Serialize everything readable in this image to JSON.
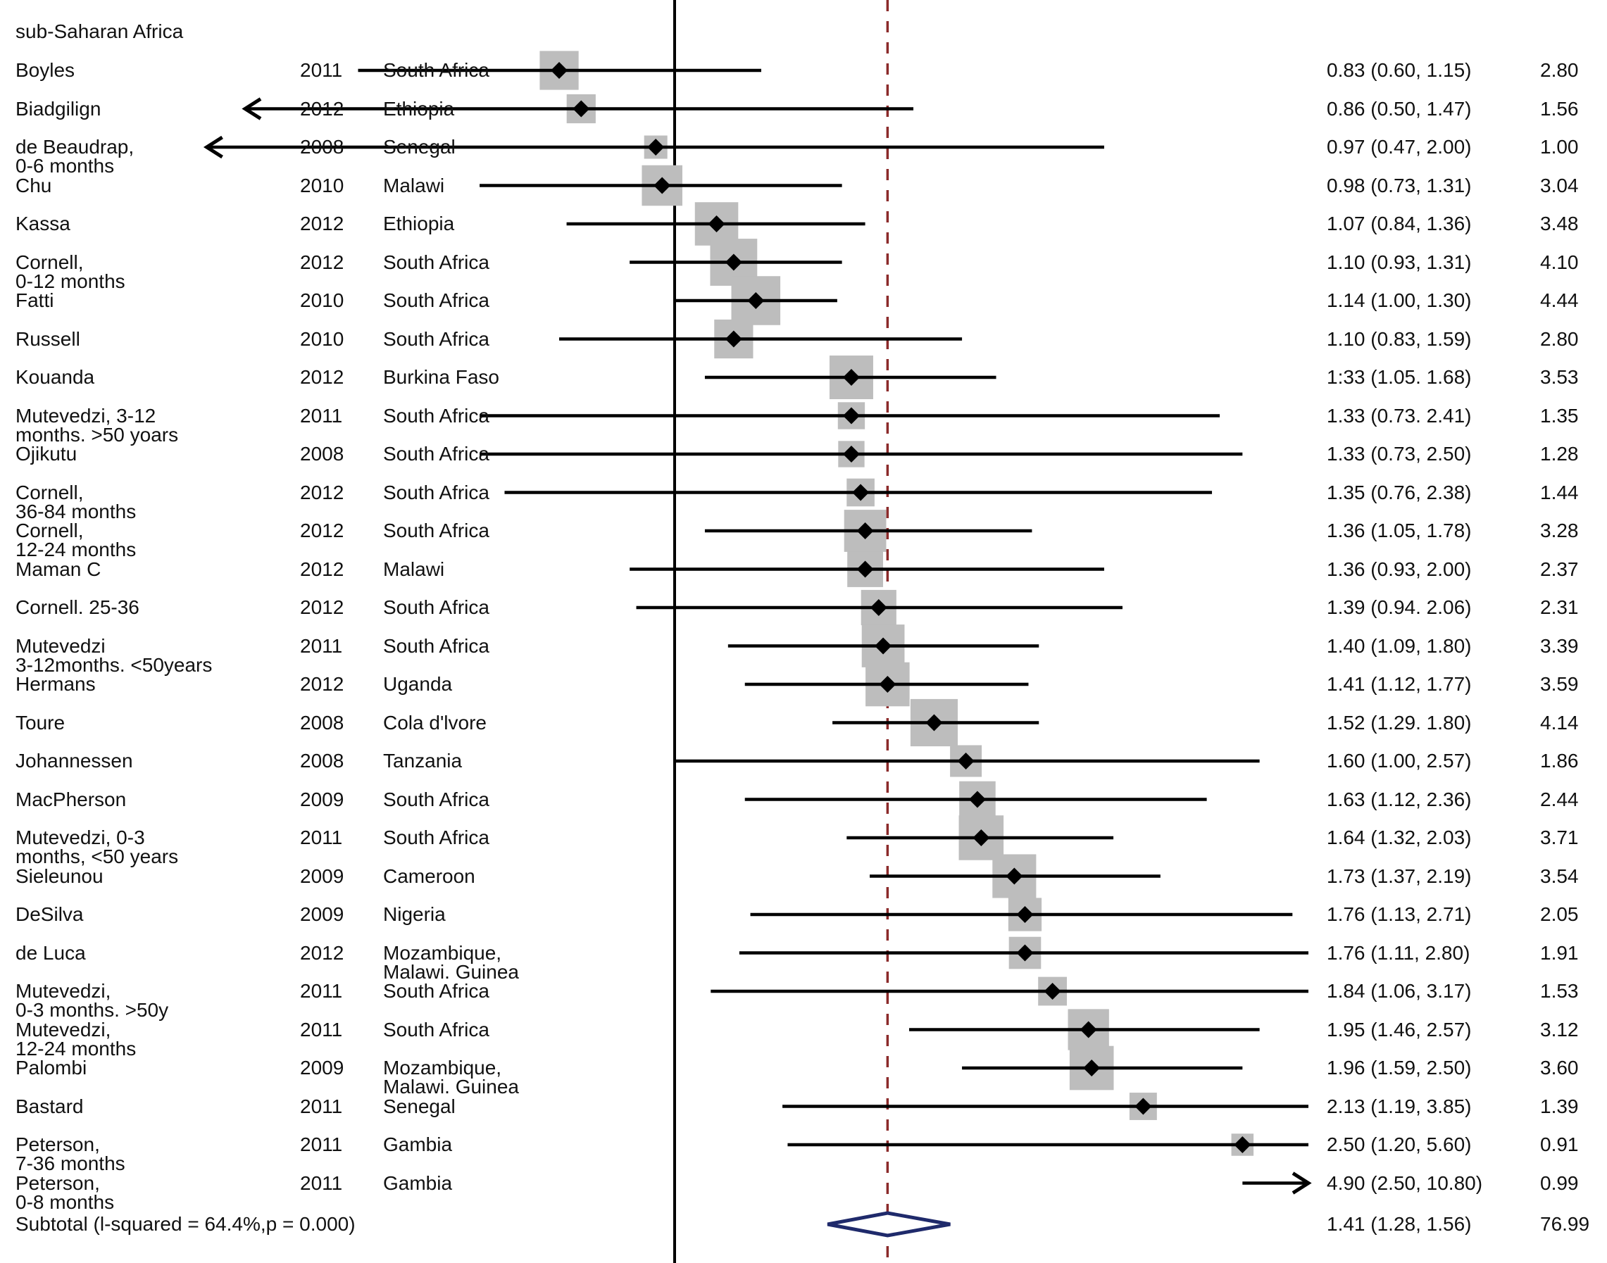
{
  "chart_data": {
    "type": "forest",
    "group_label": "sub-Saharan Africa",
    "x_scale": "log",
    "x_range": [
      0.42,
      12.5
    ],
    "null_line": 1.0,
    "pooled_line": 1.41,
    "studies": [
      {
        "author": [
          "Boyles"
        ],
        "year": "2011",
        "country": [
          "South Africa"
        ],
        "es": 0.83,
        "lo": 0.6,
        "hi": 1.15,
        "es_text": "0.83 (0.60, 1.15)",
        "weight": "2.80",
        "arrow": ""
      },
      {
        "author": [
          "Biadgilign"
        ],
        "year": "2012",
        "country": [
          "Ethiopia"
        ],
        "es": 0.86,
        "lo": 0.5,
        "hi": 1.47,
        "es_text": "0.86 (0.50, 1.47)",
        "weight": "1.56",
        "arrow": "left"
      },
      {
        "author": [
          "de Beaudrap,",
          "0-6 months"
        ],
        "year": "2008",
        "country": [
          "Senegal"
        ],
        "es": 0.97,
        "lo": 0.47,
        "hi": 2.0,
        "es_text": "0.97 (0.47, 2.00)",
        "weight": "1.00",
        "arrow": "left"
      },
      {
        "author": [
          "Chu"
        ],
        "year": "2010",
        "country": [
          "Malawi"
        ],
        "es": 0.98,
        "lo": 0.73,
        "hi": 1.31,
        "es_text": "0.98 (0.73, 1.31)",
        "weight": "3.04",
        "arrow": ""
      },
      {
        "author": [
          "Kassa"
        ],
        "year": "2012",
        "country": [
          "Ethiopia"
        ],
        "es": 1.07,
        "lo": 0.84,
        "hi": 1.36,
        "es_text": "1.07 (0.84, 1.36)",
        "weight": "3.48",
        "arrow": ""
      },
      {
        "author": [
          "Cornell,",
          "0-12 months"
        ],
        "year": "2012",
        "country": [
          "South Africa"
        ],
        "es": 1.1,
        "lo": 0.93,
        "hi": 1.31,
        "es_text": "1.10 (0.93, 1.31)",
        "weight": "4.10",
        "arrow": ""
      },
      {
        "author": [
          "Fatti"
        ],
        "year": "2010",
        "country": [
          "South Africa"
        ],
        "es": 1.14,
        "lo": 1.0,
        "hi": 1.3,
        "es_text": "1.14 (1.00, 1.30)",
        "weight": "4.44",
        "arrow": ""
      },
      {
        "author": [
          "Russell"
        ],
        "year": "2010",
        "country": [
          "South Africa"
        ],
        "es": 1.1,
        "lo": 0.83,
        "hi": 1.59,
        "es_text": "1.10 (0.83, 1.59)",
        "weight": "2.80",
        "arrow": ""
      },
      {
        "author": [
          "Kouanda"
        ],
        "year": "2012",
        "country": [
          "Burkina Faso"
        ],
        "es": 1.33,
        "lo": 1.05,
        "hi": 1.68,
        "es_text": "1:33 (1.05. 1.68)",
        "weight": "3.53",
        "arrow": ""
      },
      {
        "author": [
          "Mutevedzi, 3-12",
          "months. >50 yoars"
        ],
        "year": "2011",
        "country": [
          "South Africa"
        ],
        "es": 1.33,
        "lo": 0.73,
        "hi": 2.41,
        "es_text": "1.33 (0.73. 2.41)",
        "weight": "1.35",
        "arrow": ""
      },
      {
        "author": [
          "Ojikutu"
        ],
        "year": "2008",
        "country": [
          "South Africa"
        ],
        "es": 1.33,
        "lo": 0.73,
        "hi": 2.5,
        "es_text": "1.33 (0.73, 2.50)",
        "weight": "1.28",
        "arrow": ""
      },
      {
        "author": [
          "Cornell,",
          "36-84 months"
        ],
        "year": "2012",
        "country": [
          "South Africa"
        ],
        "es": 1.35,
        "lo": 0.76,
        "hi": 2.38,
        "es_text": "1.35 (0.76, 2.38)",
        "weight": "1.44",
        "arrow": ""
      },
      {
        "author": [
          "Cornell,",
          "12-24 months"
        ],
        "year": "2012",
        "country": [
          "South Africa"
        ],
        "es": 1.36,
        "lo": 1.05,
        "hi": 1.78,
        "es_text": "1.36 (1.05, 1.78)",
        "weight": "3.28",
        "arrow": ""
      },
      {
        "author": [
          "Maman C"
        ],
        "year": "2012",
        "country": [
          "Malawi"
        ],
        "es": 1.36,
        "lo": 0.93,
        "hi": 2.0,
        "es_text": "1.36 (0.93, 2.00)",
        "weight": "2.37",
        "arrow": ""
      },
      {
        "author": [
          "Cornell. 25-36"
        ],
        "year": "2012",
        "country": [
          "South Africa"
        ],
        "es": 1.39,
        "lo": 0.94,
        "hi": 2.06,
        "es_text": "1.39 (0.94. 2.06)",
        "weight": "2.31",
        "arrow": ""
      },
      {
        "author": [
          "Mutevedzi",
          "3-12months. <50years"
        ],
        "year": "2011",
        "country": [
          "South Africa"
        ],
        "es": 1.4,
        "lo": 1.09,
        "hi": 1.8,
        "es_text": "1.40 (1.09, 1.80)",
        "weight": "3.39",
        "arrow": ""
      },
      {
        "author": [
          "Hermans"
        ],
        "year": "2012",
        "country": [
          "Uganda"
        ],
        "es": 1.41,
        "lo": 1.12,
        "hi": 1.77,
        "es_text": "1.41 (1.12, 1.77)",
        "weight": "3.59",
        "arrow": ""
      },
      {
        "author": [
          "Toure"
        ],
        "year": "2008",
        "country": [
          "Cola d'lvore"
        ],
        "es": 1.52,
        "lo": 1.29,
        "hi": 1.8,
        "es_text": "1.52 (1.29. 1.80)",
        "weight": "4.14",
        "arrow": ""
      },
      {
        "author": [
          "Johannessen"
        ],
        "year": "2008",
        "country": [
          "Tanzania"
        ],
        "es": 1.6,
        "lo": 1.0,
        "hi": 2.57,
        "es_text": "1.60 (1.00, 2.57)",
        "weight": "1.86",
        "arrow": ""
      },
      {
        "author": [
          "MacPherson"
        ],
        "year": "2009",
        "country": [
          "South Africa"
        ],
        "es": 1.63,
        "lo": 1.12,
        "hi": 2.36,
        "es_text": "1.63 (1.12, 2.36)",
        "weight": "2.44",
        "arrow": ""
      },
      {
        "author": [
          "Mutevedzi, 0-3",
          "months, <50 years"
        ],
        "year": "2011",
        "country": [
          "South Africa"
        ],
        "es": 1.64,
        "lo": 1.32,
        "hi": 2.03,
        "es_text": "1.64 (1.32, 2.03)",
        "weight": "3.71",
        "arrow": ""
      },
      {
        "author": [
          "Sieleunou"
        ],
        "year": "2009",
        "country": [
          "Cameroon"
        ],
        "es": 1.73,
        "lo": 1.37,
        "hi": 2.19,
        "es_text": "1.73 (1.37, 2.19)",
        "weight": "3.54",
        "arrow": ""
      },
      {
        "author": [
          "DeSilva"
        ],
        "year": "2009",
        "country": [
          "Nigeria"
        ],
        "es": 1.76,
        "lo": 1.13,
        "hi": 2.71,
        "es_text": "1.76 (1.13, 2.71)",
        "weight": "2.05",
        "arrow": ""
      },
      {
        "author": [
          "de Luca"
        ],
        "year": "2012",
        "country": [
          "Mozambique,",
          "Malawi. Guinea"
        ],
        "es": 1.76,
        "lo": 1.11,
        "hi": 2.8,
        "es_text": "1.76 (1.11, 2.80)",
        "weight": "1.91",
        "arrow": ""
      },
      {
        "author": [
          "Mutevedzi,",
          "0-3 months. >50y"
        ],
        "year": "2011",
        "country": [
          "South Africa"
        ],
        "es": 1.84,
        "lo": 1.06,
        "hi": 3.17,
        "es_text": "1.84 (1.06, 3.17)",
        "weight": "1.53",
        "arrow": ""
      },
      {
        "author": [
          "Mutevedzi,",
          "12-24 months"
        ],
        "year": "2011",
        "country": [
          "South Africa"
        ],
        "es": 1.95,
        "lo": 1.46,
        "hi": 2.57,
        "es_text": "1.95 (1.46, 2.57)",
        "weight": "3.12",
        "arrow": ""
      },
      {
        "author": [
          "Palombi"
        ],
        "year": "2009",
        "country": [
          "Mozambique,",
          "Malawi. Guinea"
        ],
        "es": 1.96,
        "lo": 1.59,
        "hi": 2.5,
        "es_text": "1.96 (1.59, 2.50)",
        "weight": "3.60",
        "arrow": ""
      },
      {
        "author": [
          "Bastard"
        ],
        "year": "2011",
        "country": [
          "Senegal"
        ],
        "es": 2.13,
        "lo": 1.19,
        "hi": 3.85,
        "es_text": "2.13 (1.19, 3.85)",
        "weight": "1.39",
        "arrow": ""
      },
      {
        "author": [
          "Peterson,",
          "7-36 months"
        ],
        "year": "2011",
        "country": [
          "Gambia"
        ],
        "es": 2.5,
        "lo": 1.2,
        "hi": 5.6,
        "es_text": "2.50 (1.20, 5.60)",
        "weight": "0.91",
        "arrow": ""
      },
      {
        "author": [
          "Peterson,",
          "0-8 months"
        ],
        "year": "2011",
        "country": [
          "Gambia"
        ],
        "es": 4.9,
        "lo": 2.5,
        "hi": 10.8,
        "es_text": "4.90 (2.50, 10.80)",
        "weight": "0.99",
        "arrow": "right"
      }
    ],
    "subtotal": {
      "label": "Subtotal (l-squared = 64.4%,p  = 0.000)",
      "es": 1.41,
      "lo": 1.28,
      "hi": 1.56,
      "es_text": "1.41 (1.28, 1.56)",
      "weight": "76.99"
    },
    "colors": {
      "ci_line": "#000000",
      "marker": "#000000",
      "weight_box": "#bdbdbd",
      "null_line": "#000000",
      "pooled_line": "#8b2a2a",
      "subtotal_diamond": "#1f2a6b"
    }
  }
}
